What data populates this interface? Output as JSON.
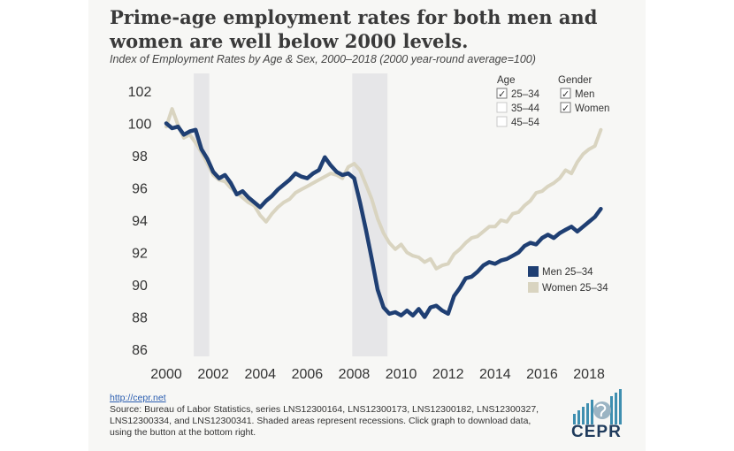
{
  "header": {
    "title": "Prime-age employment rates for both men and women are well below 2000 levels.",
    "subtitle": "Index of Employment Rates by Age & Sex, 2000–2018 (2000 year-round average=100)"
  },
  "legend": {
    "age_heading": "Age",
    "gender_heading": "Gender",
    "age_options": [
      {
        "label": "25–34",
        "checked": true
      },
      {
        "label": "35–44",
        "checked": false
      },
      {
        "label": "45–54",
        "checked": false
      }
    ],
    "gender_options": [
      {
        "label": "Men",
        "checked": true
      },
      {
        "label": "Women",
        "checked": true
      }
    ],
    "checkmark": "✓"
  },
  "footer": {
    "link": "http://cepr.net",
    "source": "Source: Bureau of Labor Statistics, series LNS12300164, LNS12300173, LNS12300182, LNS12300327, LNS12300334, and LNS12300341. Shaded areas represent recessions. Click graph to download data, using the button at the bottom right."
  },
  "logo": {
    "text": "CEPR"
  },
  "colors": {
    "men": "#1f3f73",
    "women": "#d9d4c0",
    "recession": "#e6e6e8",
    "logo": "#3f8fb0"
  },
  "chart_data": {
    "type": "line",
    "xlim": [
      2000,
      2018.75
    ],
    "ylim": [
      86,
      102
    ],
    "x_ticks": [
      2000,
      2002,
      2004,
      2006,
      2008,
      2010,
      2012,
      2014,
      2016,
      2018
    ],
    "y_ticks": [
      86,
      88,
      90,
      92,
      94,
      96,
      98,
      100,
      102
    ],
    "grid": false,
    "legend_position": "right",
    "recessions": [
      [
        2001.17,
        2001.83
      ],
      [
        2007.92,
        2009.42
      ]
    ],
    "series": [
      {
        "name": "Men 25–34",
        "color": "#1f3f73",
        "x": [
          2000.0,
          2000.25,
          2000.5,
          2000.75,
          2001.0,
          2001.25,
          2001.5,
          2001.75,
          2002.0,
          2002.25,
          2002.5,
          2002.75,
          2003.0,
          2003.25,
          2003.5,
          2003.75,
          2004.0,
          2004.25,
          2004.5,
          2004.75,
          2005.0,
          2005.25,
          2005.5,
          2005.75,
          2006.0,
          2006.25,
          2006.5,
          2006.75,
          2007.0,
          2007.25,
          2007.5,
          2007.75,
          2008.0,
          2008.25,
          2008.5,
          2008.75,
          2009.0,
          2009.25,
          2009.5,
          2009.75,
          2010.0,
          2010.25,
          2010.5,
          2010.75,
          2011.0,
          2011.25,
          2011.5,
          2011.75,
          2012.0,
          2012.25,
          2012.5,
          2012.75,
          2013.0,
          2013.25,
          2013.5,
          2013.75,
          2014.0,
          2014.25,
          2014.5,
          2014.75,
          2015.0,
          2015.25,
          2015.5,
          2015.75,
          2016.0,
          2016.25,
          2016.5,
          2016.75,
          2017.0,
          2017.25,
          2017.5,
          2017.75,
          2018.0,
          2018.25,
          2018.5
        ],
        "values": [
          100.0,
          99.7,
          99.8,
          99.3,
          99.5,
          99.6,
          98.4,
          97.8,
          97.0,
          96.6,
          96.8,
          96.3,
          95.6,
          95.8,
          95.4,
          95.1,
          94.8,
          95.2,
          95.5,
          95.9,
          96.2,
          96.5,
          96.9,
          96.7,
          96.6,
          96.9,
          97.1,
          97.9,
          97.4,
          97.0,
          96.8,
          96.9,
          96.6,
          95.1,
          93.4,
          91.6,
          89.7,
          88.6,
          88.2,
          88.3,
          88.1,
          88.4,
          88.1,
          88.5,
          88.0,
          88.6,
          88.7,
          88.4,
          88.2,
          89.3,
          89.8,
          90.4,
          90.5,
          90.8,
          91.2,
          91.4,
          91.3,
          91.5,
          91.6,
          91.8,
          92.0,
          92.4,
          92.6,
          92.5,
          92.9,
          93.1,
          92.9,
          93.2,
          93.4,
          93.6,
          93.3,
          93.6,
          93.9,
          94.2,
          94.7
        ]
      },
      {
        "name": "Women 25–34",
        "color": "#d9d4c0",
        "x": [
          2000.0,
          2000.25,
          2000.5,
          2000.75,
          2001.0,
          2001.25,
          2001.5,
          2001.75,
          2002.0,
          2002.25,
          2002.5,
          2002.75,
          2003.0,
          2003.25,
          2003.5,
          2003.75,
          2004.0,
          2004.25,
          2004.5,
          2004.75,
          2005.0,
          2005.25,
          2005.5,
          2005.75,
          2006.0,
          2006.25,
          2006.5,
          2006.75,
          2007.0,
          2007.25,
          2007.5,
          2007.75,
          2008.0,
          2008.25,
          2008.5,
          2008.75,
          2009.0,
          2009.25,
          2009.5,
          2009.75,
          2010.0,
          2010.25,
          2010.5,
          2010.75,
          2011.0,
          2011.25,
          2011.5,
          2011.75,
          2012.0,
          2012.25,
          2012.5,
          2012.75,
          2013.0,
          2013.25,
          2013.5,
          2013.75,
          2014.0,
          2014.25,
          2014.5,
          2014.75,
          2015.0,
          2015.25,
          2015.5,
          2015.75,
          2016.0,
          2016.25,
          2016.5,
          2016.75,
          2017.0,
          2017.25,
          2017.5,
          2017.75,
          2018.0,
          2018.25,
          2018.5
        ],
        "values": [
          99.8,
          100.9,
          99.9,
          99.1,
          99.3,
          98.8,
          98.2,
          97.5,
          96.8,
          96.5,
          96.4,
          96.0,
          95.7,
          95.4,
          95.1,
          94.9,
          94.3,
          93.9,
          94.4,
          94.8,
          95.1,
          95.3,
          95.7,
          95.9,
          96.1,
          96.3,
          96.5,
          96.7,
          96.9,
          96.8,
          96.6,
          97.3,
          97.5,
          97.1,
          96.2,
          95.3,
          94.1,
          93.2,
          92.6,
          92.2,
          92.5,
          92.0,
          91.8,
          91.7,
          91.4,
          91.6,
          91.0,
          91.2,
          91.3,
          91.9,
          92.2,
          92.6,
          92.9,
          93.0,
          93.3,
          93.6,
          93.6,
          94.0,
          93.9,
          94.4,
          94.5,
          94.9,
          95.2,
          95.7,
          95.8,
          96.1,
          96.3,
          96.6,
          97.1,
          96.9,
          97.6,
          98.1,
          98.4,
          98.6,
          99.6
        ]
      }
    ]
  }
}
